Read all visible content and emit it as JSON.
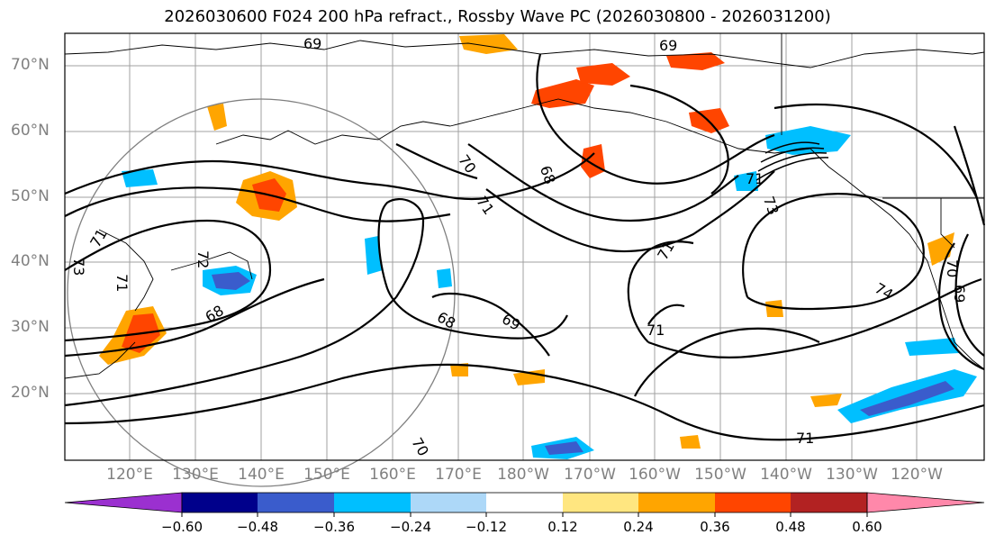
{
  "title": "2026030600 F024 200 hPa refract., Rossby Wave PC (2026030800 - 2026031200)",
  "lat_labels": [
    "70°N",
    "60°N",
    "50°N",
    "40°N",
    "30°N",
    "20°N"
  ],
  "lon_labels": [
    "120°E",
    "130°E",
    "140°E",
    "150°E",
    "160°E",
    "170°E",
    "180°W",
    "170°W",
    "160°W",
    "150°W",
    "140°W",
    "130°W",
    "120°W"
  ],
  "contour_labels": [
    "69",
    "69",
    "70",
    "71",
    "68",
    "71",
    "73",
    "71",
    "72",
    "68",
    "71",
    "71",
    "73",
    "68",
    "69",
    "74",
    "70",
    "69",
    "71",
    "70",
    "71"
  ],
  "colorbar": {
    "ticks": [
      "−0.60",
      "−0.48",
      "−0.36",
      "−0.24",
      "−0.12",
      "0.12",
      "0.24",
      "0.36",
      "0.48",
      "0.60"
    ],
    "colors": [
      "#9b30d0",
      "#00008b",
      "#3a5ccc",
      "#00bfff",
      "#add8f8",
      "#ffffff",
      "#ffe680",
      "#ffa500",
      "#ff4500",
      "#b22222",
      "#ff88aa"
    ]
  },
  "colors": {
    "positive_mid": "#ffa500",
    "positive_high": "#ff4500",
    "negative_mid": "#00bfff",
    "negative_high": "#3a5ccc",
    "grid": "#a0a0a0",
    "circle": "#808080"
  }
}
